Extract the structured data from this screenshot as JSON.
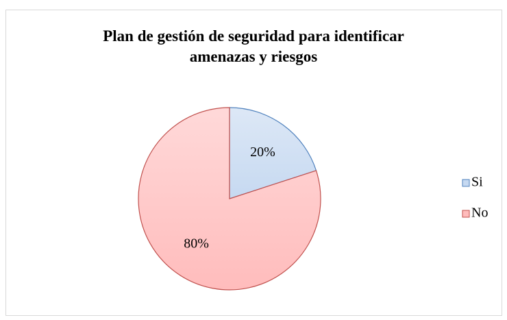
{
  "chart_data": {
    "type": "pie",
    "title": "Plan de gestión de seguridad para identificar amenazas y riesgos",
    "categories": [
      "Si",
      "No"
    ],
    "values": [
      20,
      80
    ],
    "value_labels": [
      "20%",
      "80%"
    ],
    "colors": [
      "#c6d9f1",
      "#ffbcbc"
    ],
    "edge_colors": [
      "#4f81bd",
      "#c0504d"
    ],
    "legend": "right"
  }
}
